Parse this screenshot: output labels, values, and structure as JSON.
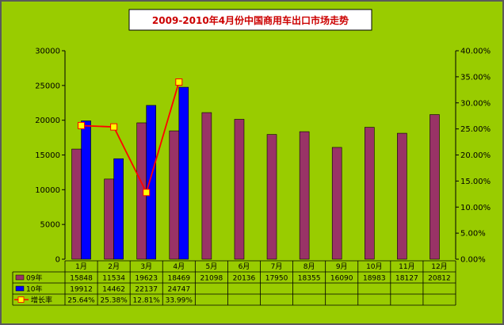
{
  "chart_data": {
    "type": "bar",
    "title": "2009-2010年4月份中国商用车出口市场走势",
    "categories": [
      "1月",
      "2月",
      "3月",
      "4月",
      "5月",
      "6月",
      "7月",
      "8月",
      "9月",
      "10月",
      "11月",
      "12月"
    ],
    "series": [
      {
        "name": "09年",
        "type": "bar",
        "axis": "left",
        "color": "#993366",
        "values": [
          15848,
          11534,
          19623,
          18469,
          21098,
          20136,
          17950,
          18355,
          16090,
          18983,
          18127,
          20812
        ],
        "labels": [
          "15848",
          "11534",
          "19623",
          "18469",
          "21098",
          "20136",
          "17950",
          "18355",
          "16090",
          "18983",
          "18127",
          "20812"
        ]
      },
      {
        "name": "10年",
        "type": "bar",
        "axis": "left",
        "color": "#0000ff",
        "values": [
          19912,
          14462,
          22137,
          24747,
          null,
          null,
          null,
          null,
          null,
          null,
          null,
          null
        ],
        "labels": [
          "19912",
          "14462",
          "22137",
          "24747",
          "",
          "",
          "",
          "",
          "",
          "",
          "",
          ""
        ]
      },
      {
        "name": "增长率",
        "type": "line",
        "axis": "right",
        "color": "#ff0000",
        "marker_color": "#ffff00",
        "values": [
          25.64,
          25.38,
          12.81,
          33.99,
          null,
          null,
          null,
          null,
          null,
          null,
          null,
          null
        ],
        "labels": [
          "25.64%",
          "25.38%",
          "12.81%",
          "33.99%",
          "",
          "",
          "",
          "",
          "",
          "",
          "",
          ""
        ]
      }
    ],
    "ylim": [
      0,
      30000
    ],
    "y_ticks": [
      "0",
      "5000",
      "10000",
      "15000",
      "20000",
      "25000",
      "30000"
    ],
    "y2lim": [
      0,
      40
    ],
    "y2_ticks": [
      "0.00%",
      "5.00%",
      "10.00%",
      "15.00%",
      "20.00%",
      "25.00%",
      "30.00%",
      "35.00%",
      "40.00%"
    ],
    "grid": false,
    "legend": "data-table-below"
  }
}
